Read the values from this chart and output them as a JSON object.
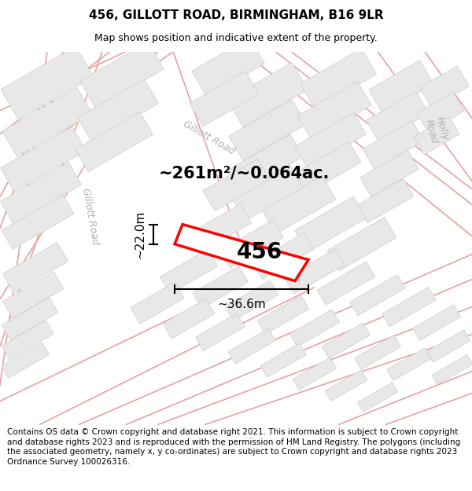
{
  "title": "456, GILLOTT ROAD, BIRMINGHAM, B16 9LR",
  "subtitle": "Map shows position and indicative extent of the property.",
  "footer": "Contains OS data © Crown copyright and database right 2021. This information is subject to Crown copyright and database rights 2023 and is reproduced with the permission of HM Land Registry. The polygons (including the associated geometry, namely x, y co-ordinates) are subject to Crown copyright and database rights 2023 Ordnance Survey 100026316.",
  "area_label": "~261m²/~0.064ac.",
  "plot_number": "456",
  "dim_width_label": "~36.6m",
  "dim_height_label": "~22.0m",
  "map_bg": "#ffffff",
  "page_bg": "#ffffff",
  "road_color": "#e8a0a0",
  "road_outline_color": "#f5c0c0",
  "building_face_color": "#e8e8e8",
  "building_edge_color": "#cccccc",
  "property_color": "#ff0000",
  "street_label_color": "#b0b0b0",
  "dim_color": "#000000",
  "title_fontsize": 11,
  "subtitle_fontsize": 9,
  "footer_fontsize": 7.5,
  "area_label_fontsize": 15,
  "plot_number_fontsize": 20,
  "street_label_fontsize": 9,
  "dim_fontsize": 11
}
